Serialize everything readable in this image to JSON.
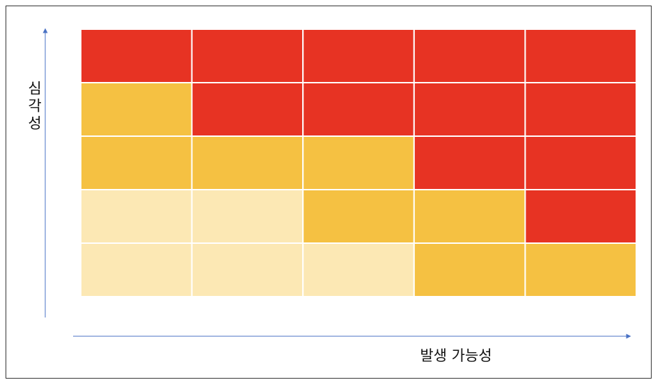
{
  "y_axis_label": "심각성",
  "x_axis_label": "발생 가능성",
  "palette": {
    "high": "#e73323",
    "medium": "#f5c142",
    "low": "#fce8b4"
  },
  "cells": [
    [
      "high",
      "high",
      "high",
      "high",
      "high"
    ],
    [
      "medium",
      "high",
      "high",
      "high",
      "high"
    ],
    [
      "medium",
      "medium",
      "medium",
      "high",
      "high"
    ],
    [
      "low",
      "low",
      "medium",
      "medium",
      "high"
    ],
    [
      "low",
      "low",
      "low",
      "medium",
      "medium"
    ]
  ]
}
